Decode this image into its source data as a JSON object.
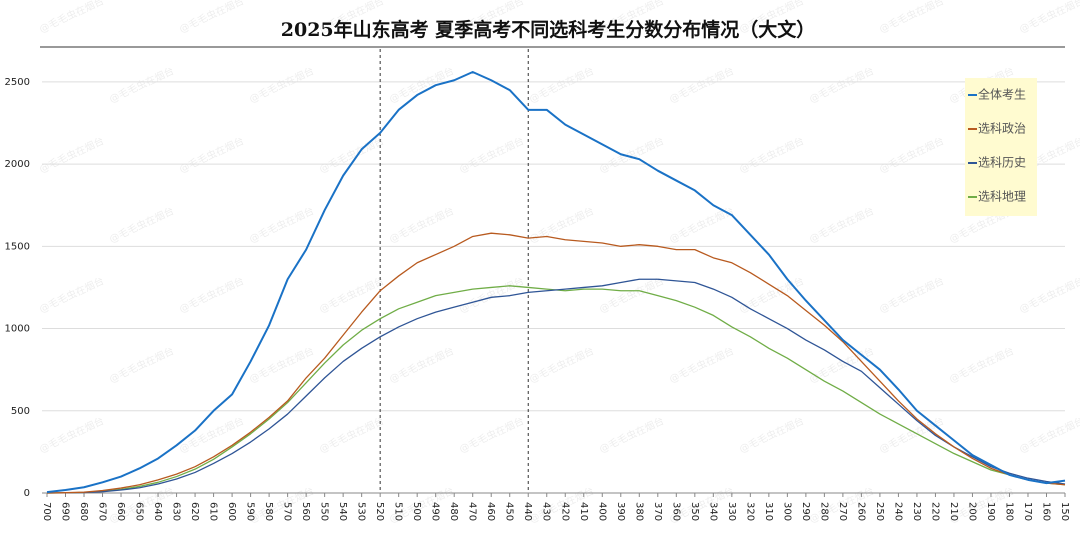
{
  "chart_data": {
    "type": "line",
    "title": "2025年山东高考 夏季高考不同选科考生分数分布情况（大文）",
    "watermark": "@毛毛虫在烟台",
    "x": [
      700,
      690,
      680,
      670,
      660,
      650,
      640,
      630,
      620,
      610,
      600,
      590,
      580,
      570,
      560,
      550,
      540,
      530,
      520,
      510,
      500,
      490,
      480,
      470,
      460,
      450,
      440,
      430,
      420,
      410,
      400,
      390,
      380,
      370,
      360,
      350,
      340,
      330,
      320,
      310,
      300,
      290,
      280,
      270,
      260,
      250,
      240,
      230,
      220,
      210,
      200,
      190,
      180,
      170,
      160,
      150
    ],
    "xlim": [
      700,
      150
    ],
    "xticks": [
      700,
      690,
      680,
      670,
      660,
      650,
      640,
      630,
      620,
      610,
      600,
      590,
      580,
      570,
      560,
      550,
      540,
      530,
      520,
      510,
      500,
      490,
      480,
      470,
      460,
      450,
      440,
      430,
      420,
      410,
      400,
      390,
      380,
      370,
      360,
      350,
      340,
      330,
      320,
      310,
      300,
      290,
      280,
      270,
      260,
      250,
      240,
      230,
      220,
      210,
      200,
      190,
      180,
      170,
      160,
      150
    ],
    "ylim": [
      0,
      2700
    ],
    "yticks": [
      0,
      500,
      1000,
      1500,
      2000,
      2500
    ],
    "grid": true,
    "vlines": [
      520,
      440
    ],
    "legend": "upper right",
    "series": [
      {
        "name": "全体考生",
        "color": "#1a72c6",
        "values": [
          5,
          18,
          35,
          65,
          100,
          150,
          210,
          290,
          380,
          500,
          600,
          800,
          1020,
          1300,
          1480,
          1720,
          1930,
          2090,
          2190,
          2330,
          2420,
          2480,
          2510,
          2560,
          2510,
          2450,
          2330,
          2330,
          2240,
          2180,
          2120,
          2060,
          2030,
          1960,
          1900,
          1840,
          1750,
          1690,
          1570,
          1450,
          1300,
          1170,
          1050,
          930,
          840,
          750,
          630,
          500,
          410,
          320,
          230,
          170,
          110,
          80,
          60,
          75
        ]
      },
      {
        "name": "选科政治",
        "color": "#b85a1f",
        "values": [
          0,
          2,
          5,
          15,
          30,
          50,
          80,
          115,
          160,
          220,
          290,
          370,
          460,
          560,
          700,
          820,
          960,
          1100,
          1230,
          1320,
          1400,
          1450,
          1500,
          1560,
          1580,
          1570,
          1550,
          1560,
          1540,
          1530,
          1520,
          1500,
          1510,
          1500,
          1480,
          1480,
          1430,
          1400,
          1340,
          1270,
          1200,
          1110,
          1020,
          920,
          800,
          680,
          560,
          450,
          360,
          280,
          210,
          150,
          110,
          80,
          60,
          50
        ]
      },
      {
        "name": "选科历史",
        "color": "#2f5596",
        "values": [
          0,
          1,
          3,
          8,
          18,
          32,
          55,
          85,
          125,
          180,
          240,
          310,
          390,
          480,
          590,
          700,
          800,
          880,
          950,
          1010,
          1060,
          1100,
          1130,
          1160,
          1190,
          1200,
          1220,
          1230,
          1240,
          1250,
          1260,
          1280,
          1300,
          1300,
          1290,
          1280,
          1240,
          1190,
          1120,
          1060,
          1000,
          930,
          870,
          800,
          740,
          640,
          540,
          440,
          350,
          280,
          220,
          160,
          120,
          90,
          70,
          55
        ]
      },
      {
        "name": "选科地理",
        "color": "#70ad47",
        "values": [
          0,
          1,
          4,
          10,
          22,
          40,
          65,
          100,
          145,
          205,
          280,
          360,
          450,
          550,
          670,
          790,
          900,
          990,
          1060,
          1120,
          1160,
          1200,
          1220,
          1240,
          1250,
          1260,
          1250,
          1240,
          1230,
          1240,
          1240,
          1230,
          1230,
          1200,
          1170,
          1130,
          1080,
          1010,
          950,
          880,
          820,
          750,
          680,
          620,
          550,
          480,
          420,
          360,
          300,
          240,
          190,
          140,
          110,
          80,
          60,
          50
        ]
      }
    ]
  }
}
